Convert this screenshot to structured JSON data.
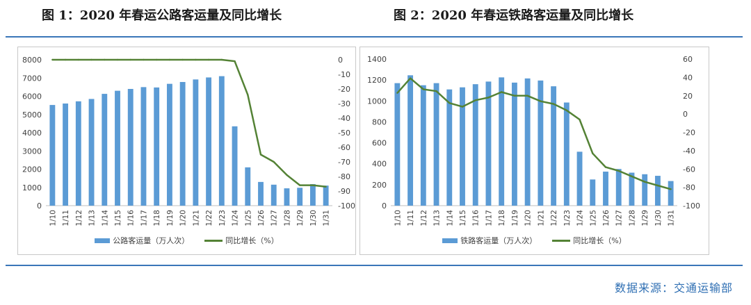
{
  "figures": {
    "fig1_title": "图 1：2020 年春运公路客运量及同比增长",
    "fig2_title": "图 2：2020 年春运铁路客运量及同比增长"
  },
  "source_text": "数据来源：交通运输部",
  "colors": {
    "bar": "#5b9bd5",
    "line": "#548235",
    "rule": "#3a76b8",
    "source": "#2f6fb3"
  },
  "chart_data": [
    {
      "type": "bar",
      "categories": [
        "1/10",
        "1/11",
        "1/12",
        "1/13",
        "1/14",
        "1/15",
        "1/16",
        "1/17",
        "1/18",
        "1/19",
        "1/20",
        "1/21",
        "1/22",
        "1/23",
        "1/24",
        "1/25",
        "1/26",
        "1/27",
        "1/28",
        "1/29",
        "1/30",
        "1/31"
      ],
      "series": [
        {
          "name": "公路客运量（万人次）",
          "type": "bar",
          "axis": "left",
          "values": [
            5520,
            5600,
            5720,
            5850,
            6130,
            6300,
            6400,
            6500,
            6480,
            6680,
            6780,
            6920,
            7030,
            7100,
            4350,
            2100,
            1300,
            1150,
            950,
            980,
            1180,
            1100
          ]
        },
        {
          "name": "同比增长（%）",
          "type": "line",
          "axis": "right",
          "values": [
            0,
            0,
            0,
            0,
            0,
            0,
            0,
            0,
            0,
            0,
            0,
            0,
            0,
            0,
            -1,
            -24,
            -65,
            -70,
            -79,
            -86,
            -86,
            -87
          ]
        }
      ],
      "yleft": {
        "min": 0,
        "max": 8000,
        "ticks": [
          "0",
          "1000",
          "2000",
          "3000",
          "4000",
          "5000",
          "6000",
          "7000",
          "8000"
        ]
      },
      "yright": {
        "min": -100,
        "max": 0,
        "ticks": [
          "0",
          "-10",
          "-20",
          "-30",
          "-40",
          "-50",
          "-60",
          "-70",
          "-80",
          "-90",
          "-100"
        ]
      },
      "legend": {
        "bar": "公路客运量（万人次）",
        "line": "同比增长（%）",
        "placement": "bottom"
      },
      "grid": false
    },
    {
      "type": "bar",
      "categories": [
        "1/10",
        "1/11",
        "1/12",
        "1/13",
        "1/14",
        "1/15",
        "1/16",
        "1/17",
        "1/18",
        "1/19",
        "1/20",
        "1/21",
        "1/22",
        "1/23",
        "1/24",
        "1/25",
        "1/26",
        "1/27",
        "1/28",
        "1/29",
        "1/30",
        "1/31"
      ],
      "series": [
        {
          "name": "铁路客运量（万人次）",
          "type": "bar",
          "axis": "left",
          "values": [
            1170,
            1245,
            1150,
            1170,
            1110,
            1130,
            1160,
            1185,
            1225,
            1175,
            1215,
            1195,
            1140,
            985,
            515,
            250,
            325,
            350,
            315,
            300,
            285,
            235
          ]
        },
        {
          "name": "同比增长（%）",
          "type": "line",
          "axis": "right",
          "values": [
            23,
            39,
            27,
            25,
            12,
            8,
            15,
            18,
            24,
            20,
            20,
            14,
            11,
            4,
            -6,
            -43,
            -58,
            -62,
            -68,
            -74,
            -78,
            -82
          ]
        }
      ],
      "yleft": {
        "min": 0,
        "max": 1400,
        "ticks": [
          "0",
          "200",
          "400",
          "600",
          "800",
          "1000",
          "1200",
          "1400"
        ]
      },
      "yright": {
        "min": -100,
        "max": 60,
        "ticks": [
          "60",
          "40",
          "20",
          "0",
          "-20",
          "-40",
          "-60",
          "-80",
          "-100"
        ]
      },
      "legend": {
        "bar": "铁路客运量（万人次）",
        "line": "同比增长（%）",
        "placement": "bottom"
      },
      "grid": false
    }
  ]
}
